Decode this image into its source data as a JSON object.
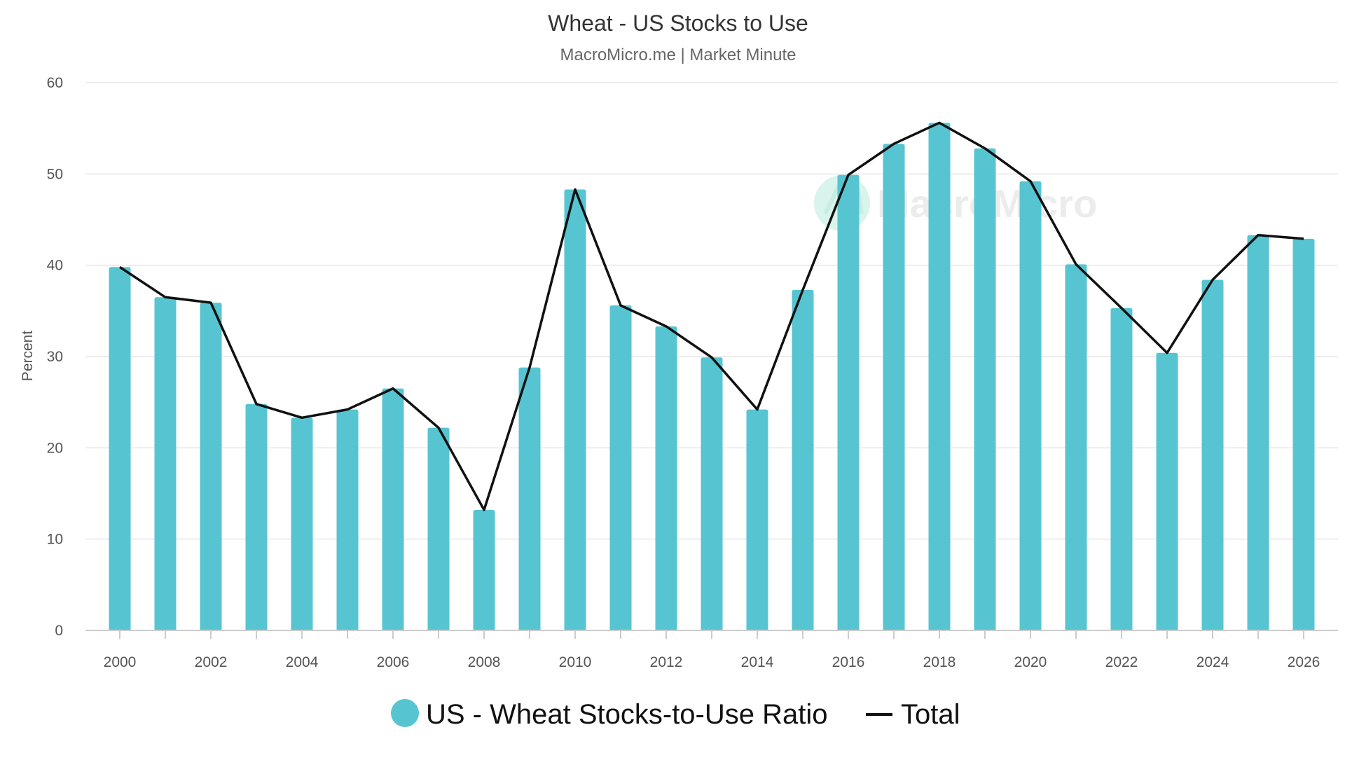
{
  "chart_data": {
    "type": "bar",
    "title": "Wheat - US Stocks to Use",
    "subtitle": "MacroMicro.me | Market Minute",
    "ylabel": "Percent",
    "xlabel": "",
    "ylim": [
      0,
      60
    ],
    "yticks": [
      0,
      10,
      20,
      30,
      40,
      50,
      60
    ],
    "x": [
      2000,
      2001,
      2002,
      2003,
      2004,
      2005,
      2006,
      2007,
      2008,
      2009,
      2010,
      2011,
      2012,
      2013,
      2014,
      2015,
      2016,
      2017,
      2018,
      2019,
      2020,
      2021,
      2022,
      2023,
      2024,
      2025,
      2026
    ],
    "xticks": [
      2000,
      2002,
      2004,
      2006,
      2008,
      2010,
      2012,
      2014,
      2016,
      2018,
      2020,
      2022,
      2024,
      2026
    ],
    "series": [
      {
        "name": "US - Wheat Stocks-to-Use Ratio",
        "type": "bar",
        "color": "#57c5d1",
        "values": [
          39.8,
          36.5,
          35.9,
          24.8,
          23.3,
          24.2,
          26.5,
          22.2,
          13.2,
          28.8,
          48.3,
          35.6,
          33.3,
          29.9,
          24.2,
          37.3,
          49.9,
          53.3,
          55.6,
          52.8,
          49.2,
          40.1,
          35.3,
          30.4,
          38.4,
          43.3,
          42.9
        ]
      },
      {
        "name": "Total",
        "type": "line",
        "color": "#111111",
        "values": [
          39.8,
          36.5,
          35.9,
          24.8,
          23.3,
          24.2,
          26.5,
          22.2,
          13.2,
          28.8,
          48.3,
          35.6,
          33.3,
          29.9,
          24.2,
          37.3,
          49.9,
          53.3,
          55.6,
          52.8,
          49.2,
          40.1,
          35.3,
          30.4,
          38.4,
          43.3,
          42.9
        ]
      }
    ],
    "legend": "bottom-center",
    "grid": true
  },
  "watermark": {
    "text": "MacroMicro"
  }
}
